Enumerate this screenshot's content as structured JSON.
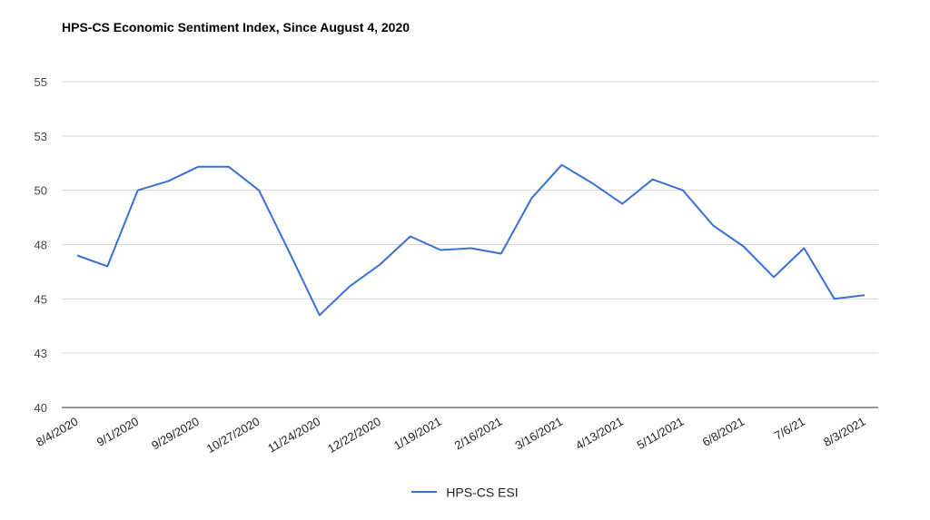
{
  "chart_data": {
    "type": "line",
    "title": "HPS-CS Economic Sentiment Index, Since August 4, 2020",
    "xlabel": "",
    "ylabel": "",
    "ylim": [
      40,
      55
    ],
    "y_ticks": [
      55,
      53,
      50,
      48,
      45,
      43,
      40
    ],
    "y_tick_labels": [
      "55",
      "53",
      "50",
      "48",
      "45",
      "43",
      "40"
    ],
    "x_tick_labels": [
      "8/4/2020",
      "9/1/2020",
      "9/29/2020",
      "10/27/2020",
      "11/24/2020",
      "12/22/2020",
      "1/19/2021",
      "2/16/2021",
      "3/16/2021",
      "4/13/2021",
      "5/11/2021",
      "6/8/2021",
      "7/6/21",
      "8/3/2021"
    ],
    "grid": true,
    "legend_position": "bottom",
    "series": [
      {
        "name": "HPS-CS ESI",
        "color": "#3a6fd8",
        "values": [
          47.4,
          46.8,
          50.0,
          50.5,
          51.3,
          51.3,
          50.0,
          47.6,
          44.4,
          45.7,
          46.9,
          48.3,
          47.7,
          47.8,
          47.5,
          49.7,
          51.4,
          50.4,
          49.5,
          50.6,
          50.0,
          48.7,
          47.9,
          46.2,
          47.8,
          45.0,
          45.2
        ]
      }
    ]
  },
  "legend": {
    "label": "HPS-CS ESI",
    "color": "#3a6fd8"
  }
}
